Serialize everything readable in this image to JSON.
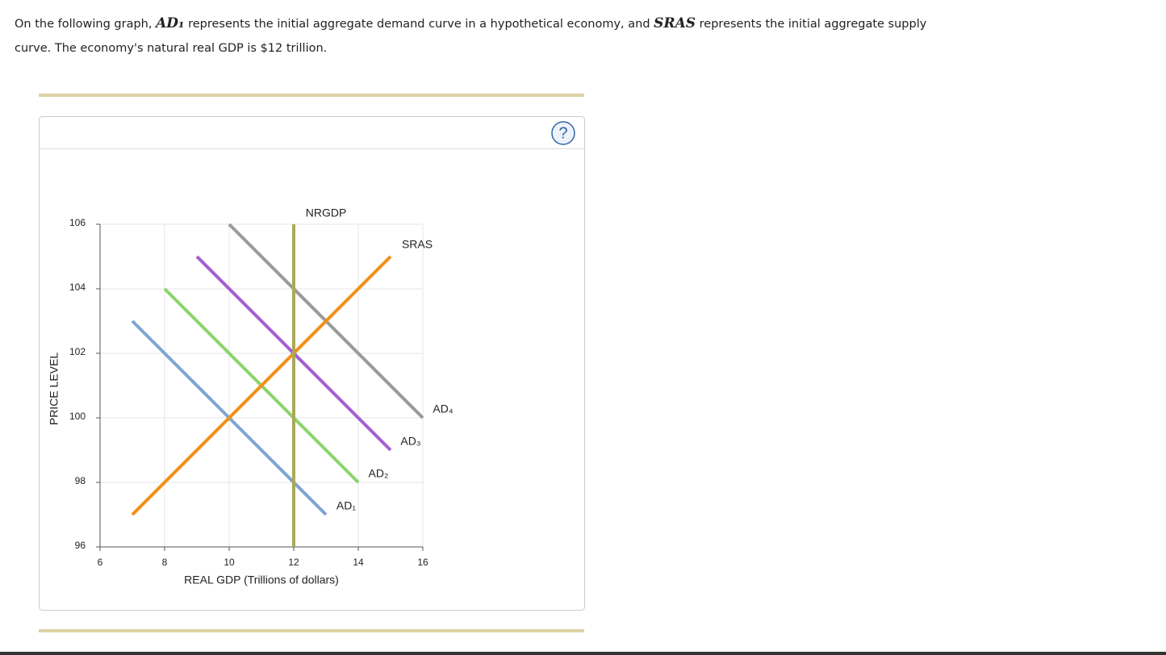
{
  "intro": [
    "On the following graph, ",
    "AD₁",
    " represents the initial aggregate demand curve in a hypothetical economy, and ",
    "SRAS",
    " represents the initial aggregate supply curve. The economy's natural real GDP is $12 trillion."
  ],
  "help": "?",
  "chart_data": {
    "type": "line",
    "x_label": "REAL GDP (Trillions of dollars)",
    "y_label": "PRICE LEVEL",
    "xlim": [
      6,
      16
    ],
    "ylim": [
      96,
      106
    ],
    "xticks": [
      6,
      8,
      10,
      12,
      14,
      16
    ],
    "yticks": [
      96,
      98,
      100,
      102,
      104,
      106
    ],
    "grid": true,
    "series": [
      {
        "name": "AD₁",
        "color": "#7ea6d3",
        "x": [
          7,
          13
        ],
        "values": [
          103,
          97
        ]
      },
      {
        "name": "AD₂",
        "color": "#8cd46a",
        "x": [
          8,
          14
        ],
        "values": [
          104,
          98
        ]
      },
      {
        "name": "AD₃",
        "color": "#a45fd1",
        "x": [
          9,
          15
        ],
        "values": [
          105,
          99
        ]
      },
      {
        "name": "AD₄",
        "color": "#9a9a9a",
        "x": [
          10,
          16
        ],
        "values": [
          106,
          100
        ]
      },
      {
        "name": "SRAS",
        "color": "#f39017",
        "x": [
          7,
          15
        ],
        "values": [
          97,
          105
        ]
      },
      {
        "name": "NRGDP",
        "color": "#a9a95b",
        "x": [
          12,
          12
        ],
        "values": [
          96,
          106
        ]
      }
    ]
  }
}
